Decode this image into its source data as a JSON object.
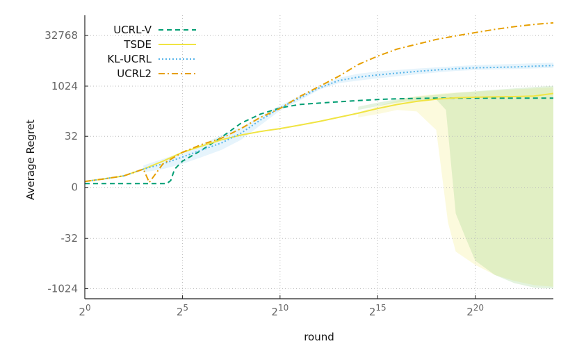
{
  "chart_data": {
    "type": "line",
    "title": "",
    "xlabel": "round",
    "ylabel": "Average Regret",
    "x_scale": "log2",
    "y_scale": "symlog",
    "xlim_exp": [
      0,
      24
    ],
    "x_ticks": [
      {
        "exp": 0,
        "base": "2",
        "sup": "0"
      },
      {
        "exp": 5,
        "base": "2",
        "sup": "5"
      },
      {
        "exp": 10,
        "base": "2",
        "sup": "10"
      },
      {
        "exp": 15,
        "base": "2",
        "sup": "15"
      },
      {
        "exp": 20,
        "base": "2",
        "sup": "20"
      }
    ],
    "y_ticks": [
      {
        "value": 32768,
        "label": "32768"
      },
      {
        "value": 1024,
        "label": "1024"
      },
      {
        "value": 32,
        "label": "32"
      },
      {
        "value": 0,
        "label": "0"
      },
      {
        "value": -32,
        "label": "-32"
      },
      {
        "value": -1024,
        "label": "-1024"
      }
    ],
    "grid": true,
    "legend_position": "top-left",
    "series": [
      {
        "name": "UCRL-V",
        "color": "#009e73",
        "dash": "7,5",
        "x_exp": [
          0,
          1,
          2,
          3,
          3.6,
          4.2,
          4.4,
          4.6,
          5,
          6,
          7,
          8,
          9,
          10,
          11,
          12,
          13,
          14,
          15,
          16,
          17,
          18,
          19,
          20,
          21,
          22,
          23,
          24
        ],
        "y": [
          0.3,
          0.3,
          0.3,
          0.3,
          0.3,
          0.3,
          0.6,
          2.5,
          5,
          12,
          30,
          80,
          150,
          230,
          290,
          320,
          350,
          380,
          410,
          430,
          440,
          450,
          450,
          450,
          450,
          450,
          450,
          450
        ],
        "band": null
      },
      {
        "name": "TSDE",
        "color": "#f0e442",
        "dash": "",
        "x_exp": [
          0,
          1,
          2,
          3,
          4,
          5,
          6,
          7,
          8,
          9,
          10,
          11,
          12,
          13,
          14,
          15,
          16,
          17,
          18,
          19,
          20,
          21,
          22,
          23,
          24
        ],
        "y": [
          0.5,
          0.8,
          1.2,
          2.5,
          5,
          10,
          16,
          25,
          35,
          45,
          55,
          70,
          90,
          120,
          160,
          220,
          290,
          360,
          420,
          460,
          480,
          490,
          500,
          520,
          620
        ],
        "band": {
          "x_exp": [
            14,
            15,
            16,
            17,
            18,
            18.6,
            19,
            20,
            21,
            22,
            23,
            24
          ],
          "lower": [
            120,
            150,
            200,
            180,
            50,
            -10,
            -80,
            -200,
            -400,
            -600,
            -800,
            -900
          ],
          "upper": [
            170,
            260,
            380,
            520,
            600,
            640,
            660,
            700,
            760,
            820,
            880,
            950
          ],
          "color": "#f0e442",
          "opacity": 0.18
        }
      },
      {
        "name": "KL-UCRL",
        "color": "#56b4e9",
        "dash": "2,3",
        "x_exp": [
          0,
          1,
          2,
          3,
          4,
          5,
          6,
          7,
          8,
          9,
          10,
          11,
          12,
          13,
          14,
          15,
          16,
          17,
          18,
          19,
          20,
          21,
          22,
          23,
          24
        ],
        "y": [
          0.5,
          0.8,
          1.2,
          2.5,
          4,
          7,
          12,
          20,
          40,
          100,
          230,
          450,
          900,
          1500,
          1900,
          2200,
          2500,
          2800,
          3100,
          3400,
          3600,
          3700,
          3800,
          4000,
          4200
        ],
        "band": {
          "x_exp": [
            3,
            4,
            5,
            6,
            7,
            8,
            9,
            10,
            11,
            12,
            13,
            14,
            15,
            16,
            17,
            18,
            19,
            20,
            21,
            22,
            23,
            24
          ],
          "lower": [
            1.8,
            2.5,
            4,
            7,
            12,
            25,
            70,
            190,
            380,
            800,
            1250,
            1500,
            1750,
            2000,
            2300,
            2600,
            2900,
            3100,
            3200,
            3300,
            3450,
            3600
          ],
          "upper": [
            3.5,
            6,
            10,
            18,
            35,
            60,
            130,
            270,
            520,
            1000,
            1800,
            2400,
            2800,
            3100,
            3400,
            3700,
            4000,
            4300,
            4500,
            4700,
            4900,
            5100
          ],
          "color": "#56b4e9",
          "opacity": 0.15
        }
      },
      {
        "name": "UCRL2",
        "color": "#e69f00",
        "dash": "9,4,2,4",
        "x_exp": [
          0,
          1,
          2,
          3,
          3.3,
          4,
          5,
          6,
          7,
          8,
          9,
          10,
          11,
          12,
          13,
          14,
          15,
          16,
          17,
          18,
          19,
          20,
          21,
          22,
          23,
          24
        ],
        "y": [
          0.5,
          0.8,
          1.2,
          2.5,
          0.4,
          4,
          10,
          18,
          28,
          55,
          120,
          220,
          500,
          1000,
          2000,
          4500,
          8000,
          13000,
          18000,
          25000,
          32000,
          40000,
          50000,
          60000,
          70000,
          78000
        ],
        "band": null
      },
      {
        "name": "",
        "color": "#8fd07a",
        "dash": "",
        "x_exp": [],
        "y": [],
        "band": {
          "x_exp": [
            14,
            15,
            16,
            17,
            18,
            18.5,
            19,
            19.5,
            20,
            21,
            22,
            23,
            24
          ],
          "lower": [
            200,
            260,
            330,
            380,
            410,
            200,
            -5,
            -30,
            -150,
            -400,
            -700,
            -950,
            -1024
          ],
          "upper": [
            250,
            330,
            420,
            500,
            560,
            600,
            640,
            680,
            720,
            800,
            880,
            960,
            1050
          ],
          "color": "#8fd07a",
          "opacity": 0.25
        }
      }
    ]
  }
}
